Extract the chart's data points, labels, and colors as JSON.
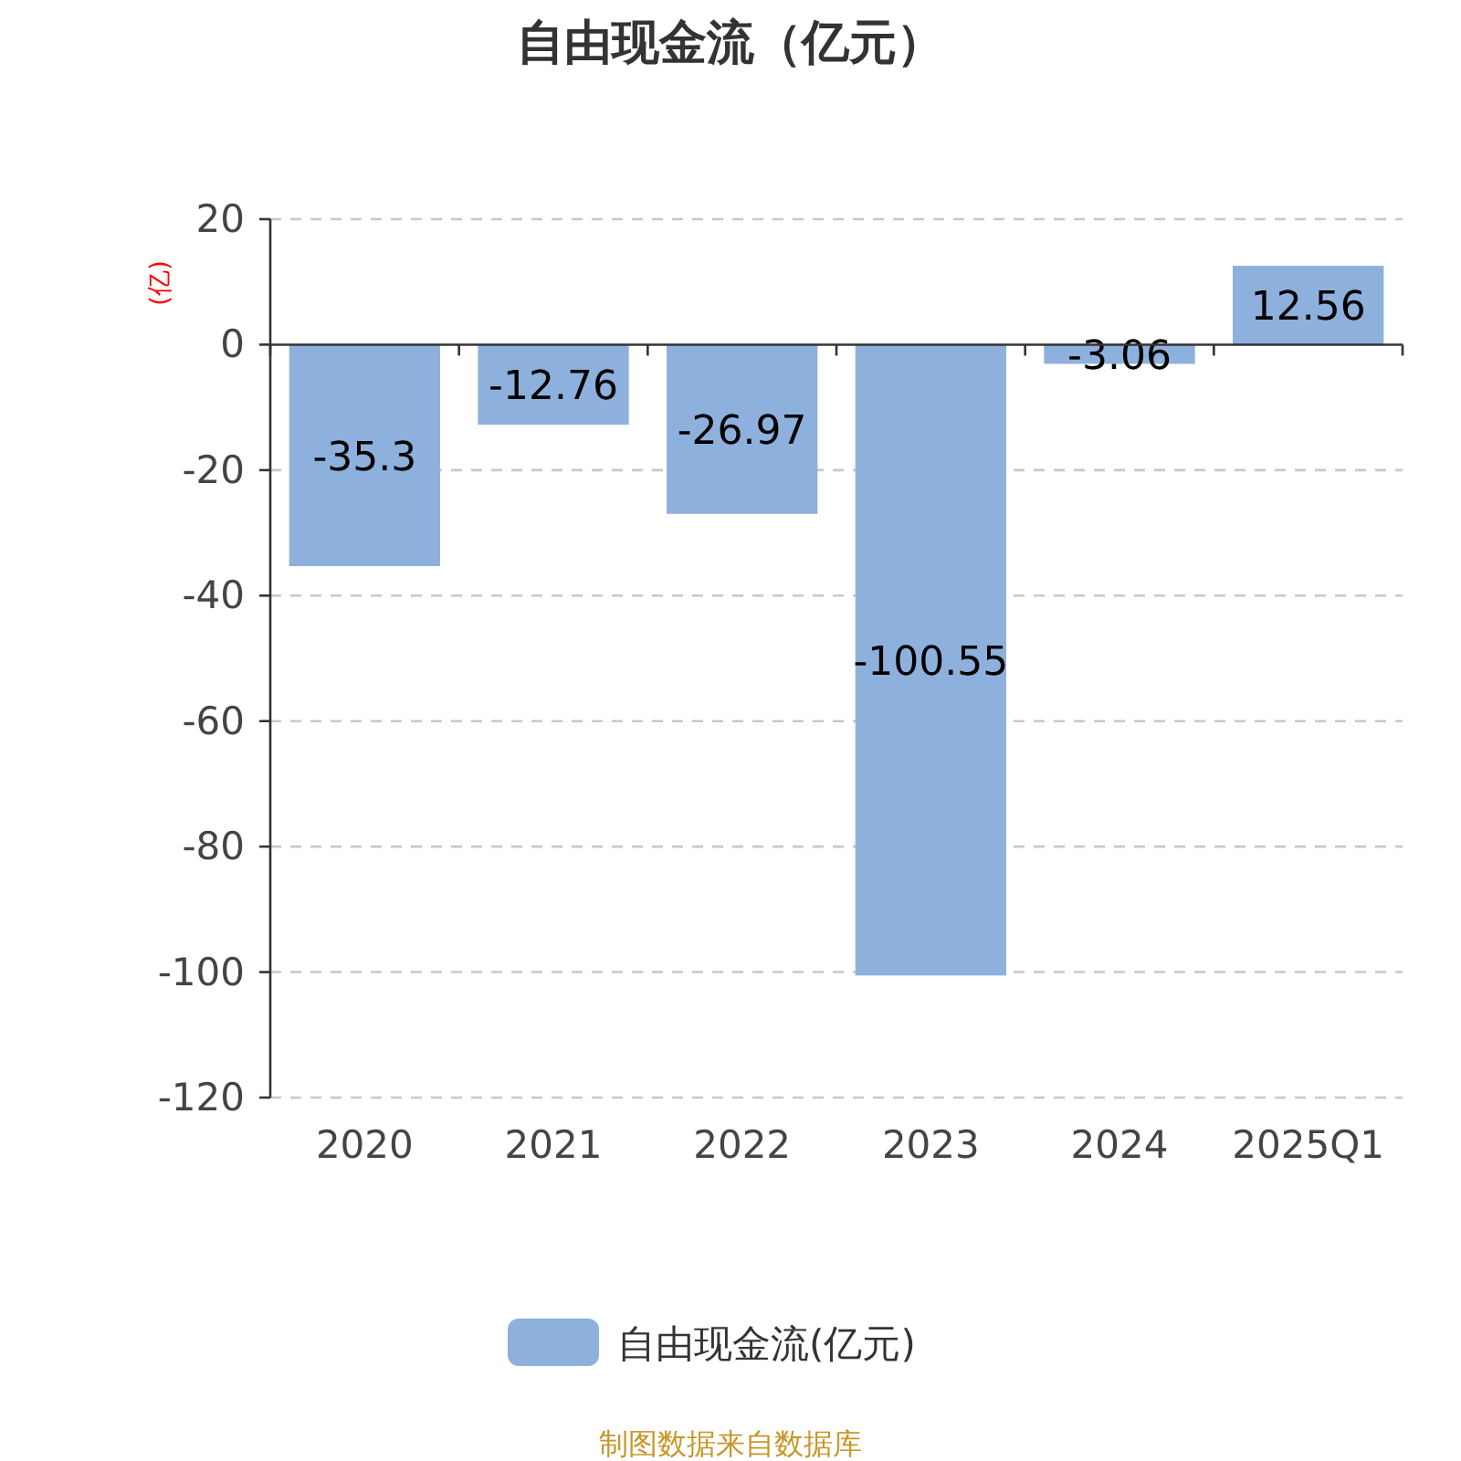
{
  "chart_data": {
    "type": "bar",
    "title": "自由现金流（亿元）",
    "ylabel": "(亿)",
    "categories": [
      "2020",
      "2021",
      "2022",
      "2023",
      "2024",
      "2025Q1"
    ],
    "series": [
      {
        "name": "自由现金流(亿元)",
        "color": "#8eb0dc",
        "values": [
          -35.3,
          -12.76,
          -26.97,
          -100.55,
          -3.06,
          12.56
        ]
      }
    ],
    "ylim": [
      -120,
      20
    ],
    "yticks": [
      -120,
      -100,
      -80,
      -60,
      -40,
      -20,
      0,
      20
    ],
    "grid": "y",
    "legend": "bottom",
    "data_labels": true,
    "annotations": [
      "制图数据来自数据库"
    ]
  }
}
